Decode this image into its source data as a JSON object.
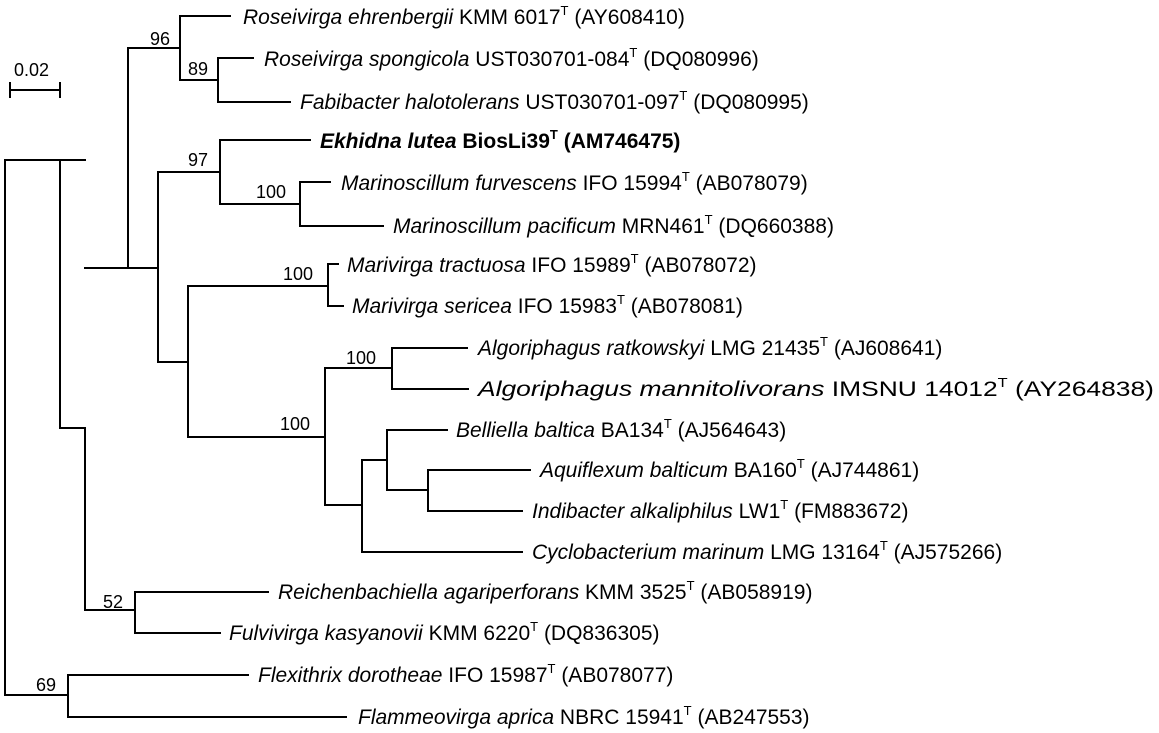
{
  "scale_bar": {
    "label": "0.02"
  },
  "bootstrap": {
    "roseivirga_group": "96",
    "roseivirga_fabibacter": "89",
    "ekhidna_marinoscillum": "97",
    "marinoscillum": "100",
    "marivirga": "100",
    "algoriphagus": "100",
    "algoriphagus_cyclobacterium": "100",
    "reichenbachiella_fulvivirga": "52",
    "flexithrix_flammeovirga": "69"
  },
  "taxa": [
    {
      "species": "Roseivirga ehrenbergii",
      "strain": "KMM 6017",
      "type_mark": "T",
      "accession": "(AY608410)"
    },
    {
      "species": "Roseivirga spongicola",
      "strain": "UST030701-084",
      "type_mark": "T",
      "accession": "(DQ080996)"
    },
    {
      "species": "Fabibacter halotolerans",
      "strain": "UST030701-097",
      "type_mark": "T",
      "accession": "(DQ080995)"
    },
    {
      "species": "Ekhidna lutea",
      "strain": "BiosLi39",
      "type_mark": "T",
      "accession": "(AM746475)",
      "bold": true
    },
    {
      "species": "Marinoscillum furvescens",
      "strain": "IFO 15994",
      "type_mark": "T",
      "accession": "(AB078079)"
    },
    {
      "species": "Marinoscillum pacificum",
      "strain": "MRN461",
      "type_mark": "T",
      "accession": "(DQ660388)"
    },
    {
      "species": "Marivirga tractuosa",
      "strain": "IFO 15989",
      "type_mark": "T",
      "accession": "(AB078072)"
    },
    {
      "species": "Marivirga sericea",
      "strain": "IFO 15983",
      "type_mark": "T",
      "accession": "(AB078081)"
    },
    {
      "species": "Algoriphagus ratkowskyi",
      "strain": "LMG 21435",
      "type_mark": "T",
      "accession": "(AJ608641)"
    },
    {
      "species": "Algoriphagus mannitolivorans",
      "strain": "IMSNU 14012",
      "type_mark": "T",
      "accession": "(AY264838)"
    },
    {
      "species": "Belliella baltica",
      "strain": "BA134",
      "type_mark": "T",
      "accession": "(AJ564643)"
    },
    {
      "species": "Aquiflexum balticum",
      "strain": "BA160",
      "type_mark": "T",
      "accession": "(AJ744861)"
    },
    {
      "species": "Indibacter alkaliphilus",
      "strain": "LW1",
      "type_mark": "T",
      "accession": "(FM883672)"
    },
    {
      "species": "Cyclobacterium marinum",
      "strain": "LMG 13164",
      "type_mark": "T",
      "accession": "(AJ575266)"
    },
    {
      "species": "Reichenbachiella agariperforans",
      "strain": "KMM 3525",
      "type_mark": "T",
      "accession": "(AB058919)"
    },
    {
      "species": "Fulvivirga kasyanovii",
      "strain": "KMM 6220",
      "type_mark": "T",
      "accession": "(DQ836305)"
    },
    {
      "species": "Flexithrix dorotheae",
      "strain": "IFO 15987",
      "type_mark": "T",
      "accession": "(AB078077)"
    },
    {
      "species": "Flammeovirga aprica",
      "strain": "NBRC 15941",
      "type_mark": "T",
      "accession": "(AB247553)"
    }
  ]
}
